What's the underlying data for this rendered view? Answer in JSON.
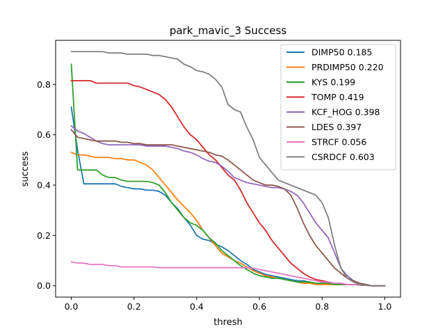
{
  "chart_data": {
    "type": "line",
    "title": "park_mavic_3 Success",
    "xlabel": "thresh",
    "ylabel": "success",
    "xlim": [
      -0.05,
      1.05
    ],
    "ylim": [
      -0.045,
      0.975
    ],
    "xticks": [
      "0.0",
      "0.2",
      "0.4",
      "0.6",
      "0.8",
      "1.0"
    ],
    "yticks": [
      "0.0",
      "0.2",
      "0.4",
      "0.6",
      "0.8"
    ],
    "grid": false,
    "legend_position": "top-right",
    "x": [
      0.0,
      0.02,
      0.04,
      0.06,
      0.08,
      0.1,
      0.12,
      0.14,
      0.16,
      0.18,
      0.2,
      0.22,
      0.24,
      0.26,
      0.28,
      0.3,
      0.32,
      0.34,
      0.36,
      0.38,
      0.4,
      0.42,
      0.44,
      0.46,
      0.48,
      0.5,
      0.52,
      0.54,
      0.56,
      0.58,
      0.6,
      0.62,
      0.64,
      0.66,
      0.68,
      0.7,
      0.72,
      0.74,
      0.76,
      0.78,
      0.8,
      0.82,
      0.84,
      0.86,
      0.88,
      0.9,
      0.92,
      0.94,
      0.96,
      0.98,
      1.0
    ],
    "series": [
      {
        "name": "DIMP50",
        "auc": "0.185",
        "color": "#1f77b4",
        "values": [
          0.71,
          0.54,
          0.405,
          0.405,
          0.405,
          0.405,
          0.405,
          0.405,
          0.395,
          0.39,
          0.385,
          0.385,
          0.38,
          0.38,
          0.375,
          0.36,
          0.33,
          0.305,
          0.27,
          0.24,
          0.2,
          0.185,
          0.18,
          0.165,
          0.155,
          0.14,
          0.12,
          0.1,
          0.085,
          0.065,
          0.055,
          0.045,
          0.04,
          0.035,
          0.03,
          0.025,
          0.02,
          0.02,
          0.015,
          0.01,
          0.01,
          0.01,
          0.005,
          0.005,
          0.005,
          0.005,
          0.003,
          0.002,
          0.0,
          0.0,
          0.0
        ]
      },
      {
        "name": "PRDIMP50",
        "auc": "0.220",
        "color": "#ff7f0e",
        "values": [
          0.53,
          0.52,
          0.52,
          0.515,
          0.51,
          0.51,
          0.51,
          0.505,
          0.505,
          0.5,
          0.5,
          0.49,
          0.48,
          0.46,
          0.43,
          0.4,
          0.37,
          0.34,
          0.315,
          0.29,
          0.26,
          0.22,
          0.19,
          0.16,
          0.13,
          0.115,
          0.1,
          0.09,
          0.075,
          0.06,
          0.05,
          0.04,
          0.035,
          0.03,
          0.025,
          0.02,
          0.015,
          0.01,
          0.01,
          0.005,
          0.005,
          0.005,
          0.005,
          0.005,
          0.005,
          0.005,
          0.003,
          0.002,
          0.0,
          0.0,
          0.0
        ]
      },
      {
        "name": "KYS",
        "auc": "0.199",
        "color": "#2ca02c",
        "values": [
          0.88,
          0.46,
          0.46,
          0.46,
          0.46,
          0.44,
          0.43,
          0.43,
          0.42,
          0.415,
          0.415,
          0.415,
          0.415,
          0.41,
          0.4,
          0.37,
          0.33,
          0.3,
          0.27,
          0.25,
          0.24,
          0.22,
          0.19,
          0.17,
          0.14,
          0.12,
          0.1,
          0.08,
          0.065,
          0.05,
          0.04,
          0.035,
          0.03,
          0.03,
          0.025,
          0.02,
          0.015,
          0.015,
          0.015,
          0.01,
          0.01,
          0.01,
          0.005,
          0.005,
          0.005,
          0.005,
          0.003,
          0.002,
          0.0,
          0.0,
          0.0
        ]
      },
      {
        "name": "TOMP",
        "auc": "0.419",
        "color": "#d62728",
        "values": [
          0.815,
          0.815,
          0.815,
          0.815,
          0.805,
          0.805,
          0.805,
          0.805,
          0.805,
          0.805,
          0.795,
          0.79,
          0.78,
          0.77,
          0.76,
          0.74,
          0.71,
          0.67,
          0.63,
          0.6,
          0.58,
          0.55,
          0.52,
          0.5,
          0.47,
          0.44,
          0.42,
          0.38,
          0.33,
          0.29,
          0.25,
          0.22,
          0.18,
          0.15,
          0.12,
          0.09,
          0.07,
          0.05,
          0.035,
          0.025,
          0.02,
          0.015,
          0.01,
          0.01,
          0.005,
          0.005,
          0.003,
          0.002,
          0.0,
          0.0,
          0.0
        ]
      },
      {
        "name": "KCF_HOG",
        "auc": "0.398",
        "color": "#9467bd",
        "values": [
          0.635,
          0.615,
          0.605,
          0.59,
          0.575,
          0.565,
          0.56,
          0.56,
          0.56,
          0.56,
          0.56,
          0.56,
          0.555,
          0.555,
          0.555,
          0.555,
          0.55,
          0.545,
          0.535,
          0.53,
          0.52,
          0.505,
          0.495,
          0.49,
          0.475,
          0.455,
          0.43,
          0.42,
          0.41,
          0.405,
          0.4,
          0.395,
          0.39,
          0.39,
          0.385,
          0.375,
          0.36,
          0.33,
          0.29,
          0.25,
          0.22,
          0.19,
          0.13,
          0.07,
          0.04,
          0.02,
          0.01,
          0.005,
          0.0,
          0.0,
          0.0
        ]
      },
      {
        "name": "LDES",
        "auc": "0.397",
        "color": "#8c564b",
        "values": [
          0.62,
          0.59,
          0.585,
          0.58,
          0.575,
          0.575,
          0.575,
          0.575,
          0.57,
          0.57,
          0.565,
          0.565,
          0.56,
          0.56,
          0.56,
          0.56,
          0.56,
          0.555,
          0.55,
          0.545,
          0.54,
          0.535,
          0.53,
          0.52,
          0.515,
          0.5,
          0.48,
          0.46,
          0.44,
          0.42,
          0.41,
          0.4,
          0.4,
          0.395,
          0.385,
          0.36,
          0.31,
          0.25,
          0.2,
          0.16,
          0.13,
          0.1,
          0.07,
          0.05,
          0.03,
          0.02,
          0.01,
          0.005,
          0.0,
          0.0,
          0.0
        ]
      },
      {
        "name": "STRCF",
        "auc": "0.056",
        "color": "#e377c2",
        "values": [
          0.095,
          0.09,
          0.09,
          0.085,
          0.085,
          0.085,
          0.08,
          0.08,
          0.075,
          0.075,
          0.075,
          0.075,
          0.075,
          0.075,
          0.072,
          0.072,
          0.072,
          0.072,
          0.072,
          0.072,
          0.072,
          0.072,
          0.072,
          0.072,
          0.072,
          0.072,
          0.072,
          0.072,
          0.072,
          0.07,
          0.065,
          0.06,
          0.055,
          0.05,
          0.045,
          0.04,
          0.035,
          0.03,
          0.025,
          0.02,
          0.015,
          0.015,
          0.01,
          0.01,
          0.005,
          0.005,
          0.003,
          0.002,
          0.0,
          0.0,
          0.0
        ]
      },
      {
        "name": "CSRDCF",
        "auc": "0.603",
        "color": "#7f7f7f",
        "values": [
          0.93,
          0.93,
          0.93,
          0.93,
          0.93,
          0.93,
          0.925,
          0.925,
          0.925,
          0.92,
          0.92,
          0.92,
          0.92,
          0.915,
          0.915,
          0.91,
          0.905,
          0.9,
          0.88,
          0.87,
          0.855,
          0.85,
          0.84,
          0.82,
          0.79,
          0.72,
          0.7,
          0.69,
          0.63,
          0.58,
          0.51,
          0.48,
          0.45,
          0.42,
          0.41,
          0.4,
          0.39,
          0.38,
          0.37,
          0.36,
          0.33,
          0.27,
          0.16,
          0.07,
          0.03,
          0.015,
          0.005,
          0.002,
          0.0,
          0.0,
          0.0
        ]
      }
    ]
  }
}
